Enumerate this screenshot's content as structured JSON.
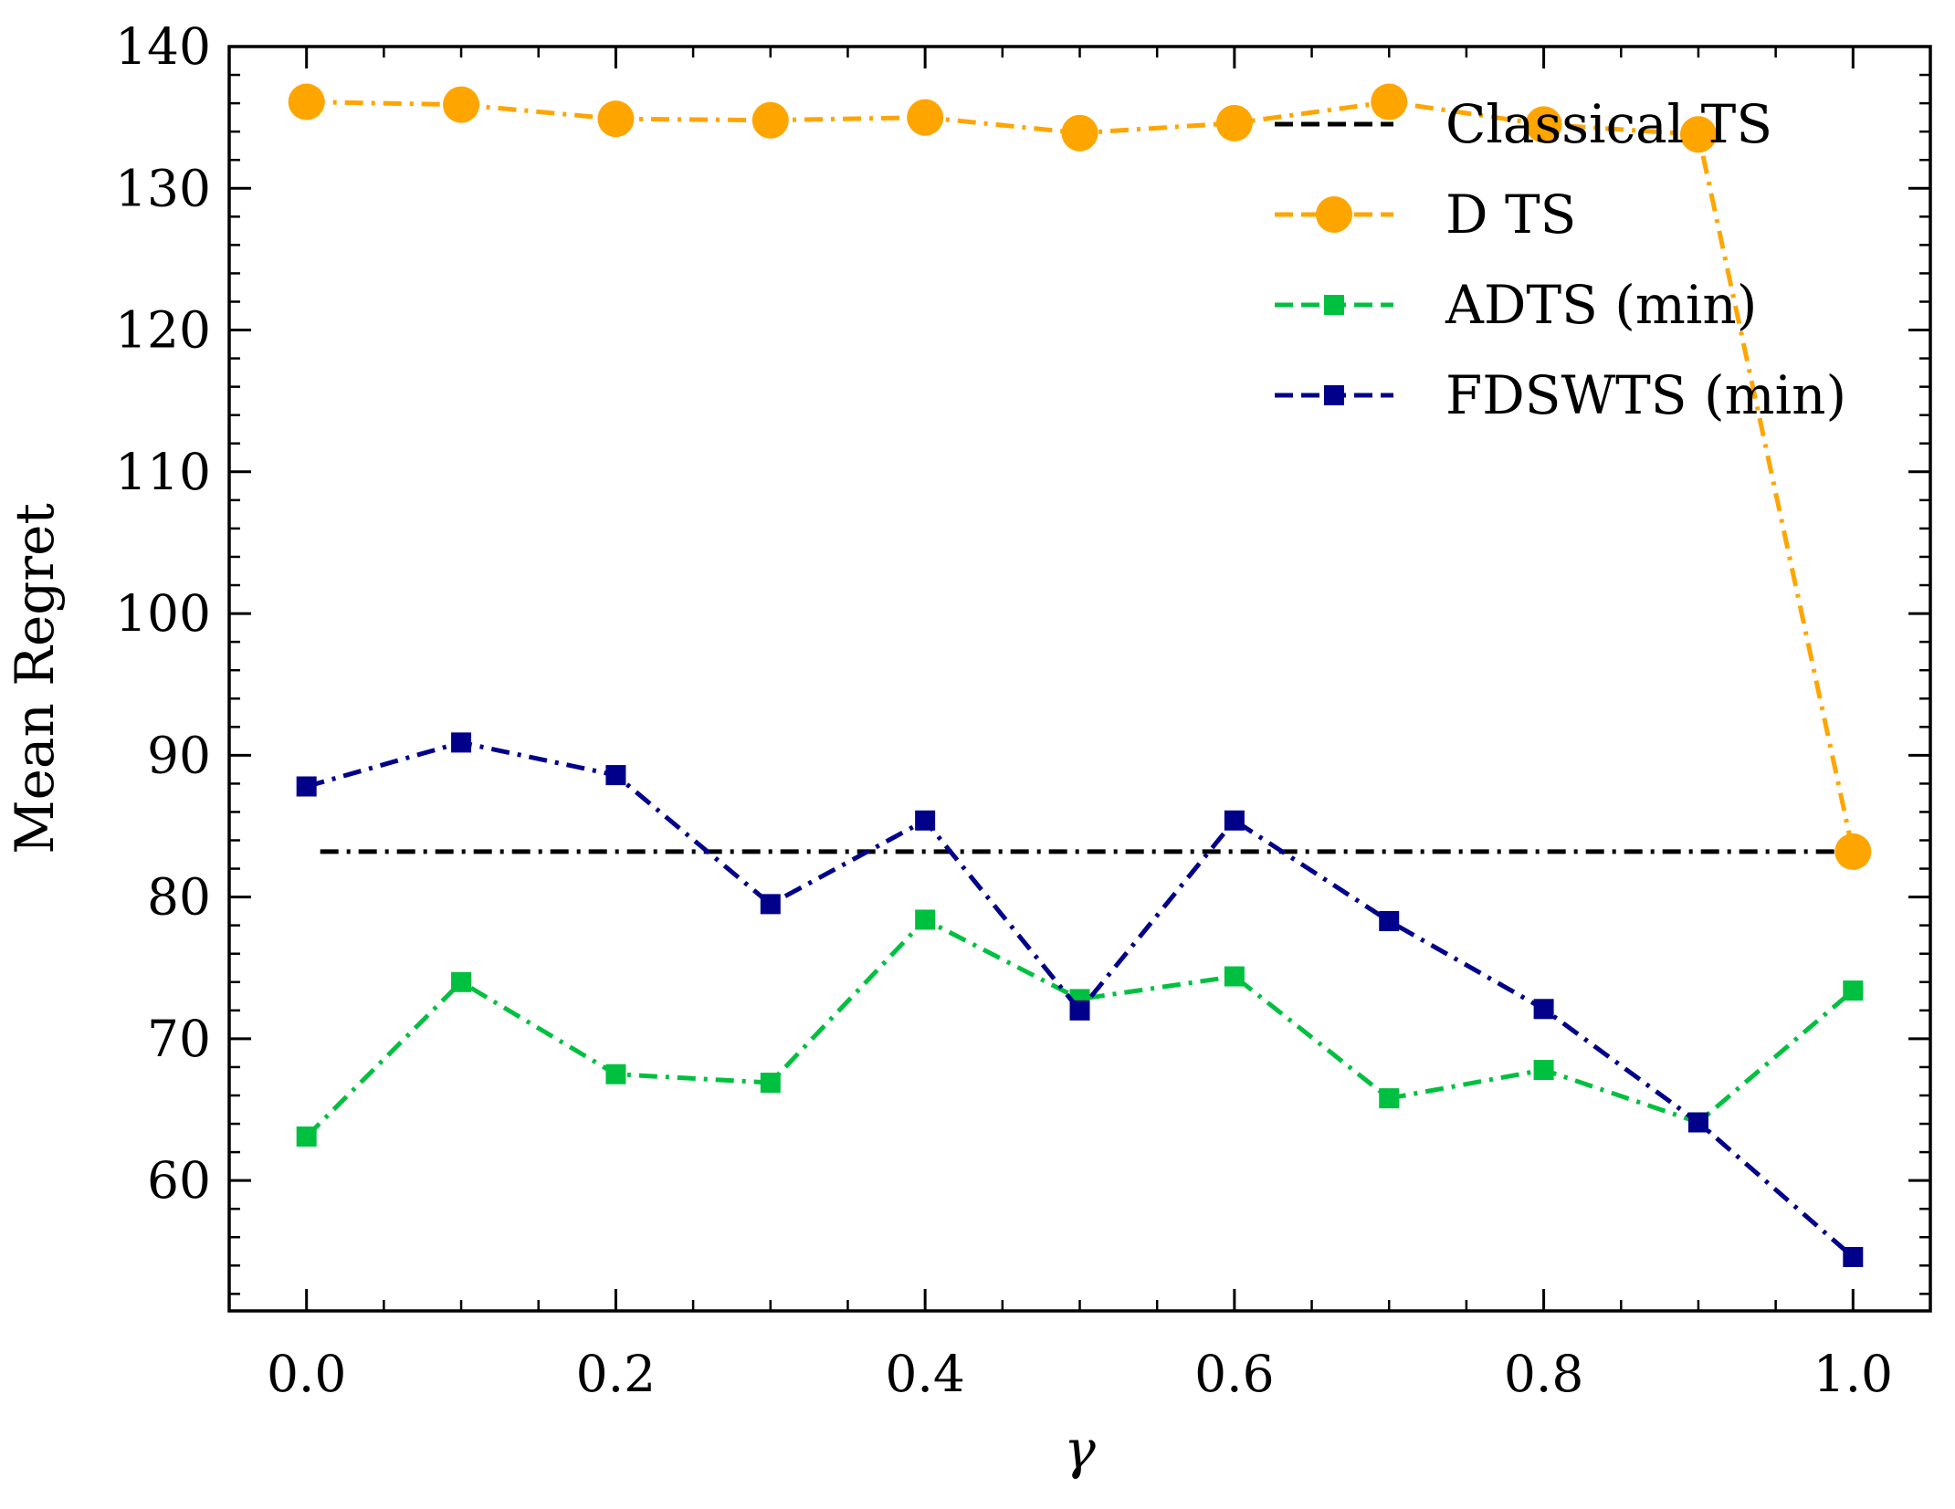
{
  "chart_data": {
    "type": "line",
    "title": "",
    "xlabel": "γ",
    "ylabel": "Mean Regret",
    "xlim": [
      -0.05,
      1.05
    ],
    "ylim": [
      50.8,
      140
    ],
    "x_ticks": [
      "0.0",
      "0.2",
      "0.4",
      "0.6",
      "0.8",
      "1.0"
    ],
    "x_tick_values": [
      0.0,
      0.2,
      0.4,
      0.6,
      0.8,
      1.0
    ],
    "y_ticks": [
      "60",
      "70",
      "80",
      "90",
      "100",
      "110",
      "120",
      "130",
      "140"
    ],
    "y_tick_values": [
      60,
      70,
      80,
      90,
      100,
      110,
      120,
      130,
      140
    ],
    "legend_position": "top-right",
    "grid": false,
    "x": [
      0.0,
      0.1,
      0.2,
      0.3,
      0.4,
      0.5,
      0.6,
      0.7,
      0.8,
      0.9,
      1.0
    ],
    "series": [
      {
        "name": "Classical TS",
        "kind": "hline",
        "value": 83.2,
        "color": "#000000",
        "linestyle": "dashdot",
        "marker": "none"
      },
      {
        "name": "D TS",
        "values": [
          136.1,
          135.9,
          134.9,
          134.8,
          135.0,
          133.9,
          134.6,
          136.1,
          134.5,
          133.8,
          83.2
        ],
        "color": "#FFA500",
        "linestyle": "dashdot",
        "marker": "circle"
      },
      {
        "name": "ADTS (min)",
        "values": [
          63.1,
          74.0,
          67.5,
          66.9,
          78.4,
          72.8,
          74.4,
          65.8,
          67.8,
          64.1,
          73.4
        ],
        "color": "#00C040",
        "linestyle": "dashdot",
        "marker": "square"
      },
      {
        "name": "FDSWTS (min)",
        "values": [
          87.8,
          90.9,
          88.6,
          79.5,
          85.4,
          72.0,
          85.4,
          78.3,
          72.1,
          64.1,
          54.6
        ],
        "color": "#00008B",
        "linestyle": "dashdot",
        "marker": "square"
      }
    ]
  }
}
